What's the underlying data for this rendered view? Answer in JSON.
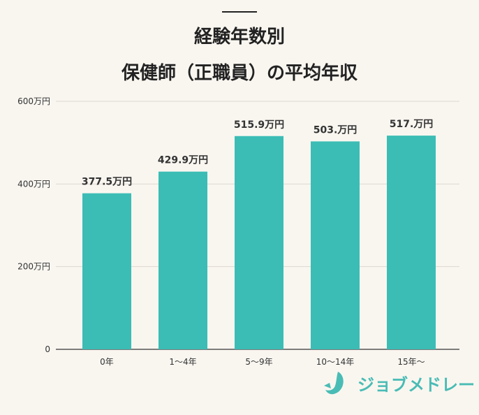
{
  "chart_data": {
    "type": "bar",
    "title_lines": [
      "経験年数別",
      "保健師（正職員）の平均年収"
    ],
    "categories": [
      "0年",
      "1〜4年",
      "5〜9年",
      "10〜14年",
      "15年〜"
    ],
    "values": [
      377.5,
      429.9,
      515.9,
      503,
      517
    ],
    "data_labels": [
      "377.5万円",
      "429.9万円",
      "515.9万円",
      "503.万円",
      "517.万円"
    ],
    "yticks": [
      {
        "v": 0,
        "label": "0"
      },
      {
        "v": 200,
        "label": "200万円"
      },
      {
        "v": 400,
        "label": "400万円"
      },
      {
        "v": 600,
        "label": "600万円"
      }
    ],
    "ylim": [
      0,
      600
    ],
    "grid": true,
    "bar_color": "#3bbdb5"
  },
  "brand": {
    "name": "ジョブメドレー",
    "color": "#49bcb5",
    "icon": "jobmedley-logo-icon"
  }
}
